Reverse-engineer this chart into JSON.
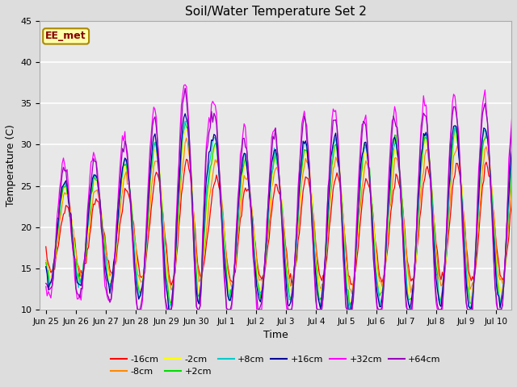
{
  "title": "Soil/Water Temperature Set 2",
  "xlabel": "Time",
  "ylabel": "Temperature (C)",
  "ylim": [
    10,
    45
  ],
  "series": {
    "-16cm": {
      "color": "#ff0000"
    },
    "-8cm": {
      "color": "#ff8800"
    },
    "-2cm": {
      "color": "#ffff00"
    },
    "+2cm": {
      "color": "#00dd00"
    },
    "+8cm": {
      "color": "#00cccc"
    },
    "+16cm": {
      "color": "#000099"
    },
    "+32cm": {
      "color": "#ff00ff"
    },
    "+64cm": {
      "color": "#9900bb"
    }
  },
  "annotation_text": "EE_met",
  "annotation_color": "#880000",
  "annotation_bg": "#ffffaa",
  "annotation_border": "#aa8800",
  "fig_bg": "#dddddd",
  "plot_bg": "#e8e8e8",
  "tick_labels": [
    "Jun 25",
    "Jun 26",
    "Jun 27",
    "Jun 28",
    "Jun 29",
    "Jun 30",
    "Jul 1",
    "Jul 2",
    "Jul 3",
    "Jul 4",
    "Jul 5",
    "Jul 6",
    "Jul 7",
    "Jul 8",
    "Jul 9",
    "Jul 10"
  ],
  "tick_positions": [
    0,
    1,
    2,
    3,
    4,
    5,
    6,
    7,
    8,
    9,
    10,
    11,
    12,
    13,
    14,
    15
  ],
  "yticks": [
    10,
    15,
    20,
    25,
    30,
    35,
    40,
    45
  ]
}
